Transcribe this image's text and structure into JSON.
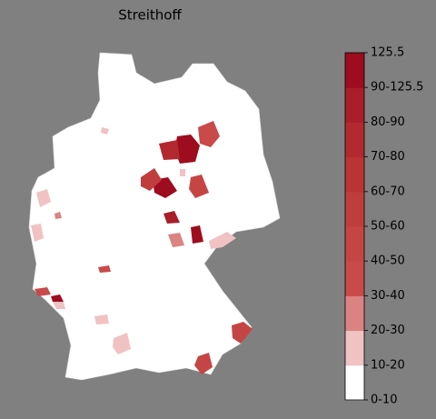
{
  "title": "Streithoff",
  "colorbar": {
    "labels": [
      "0-10",
      "10-20",
      "20-30",
      "30-40",
      "40-50",
      "50-60",
      "60-70",
      "70-80",
      "80-90",
      "90-125.5",
      "125.5"
    ],
    "colors": [
      "#ffffff",
      "#f0c2c2",
      "#db8282",
      "#c84a4a",
      "#c54545",
      "#c03d3d",
      "#ba3436",
      "#b22a2f",
      "#a91e28",
      "#9e0c1f"
    ]
  }
}
